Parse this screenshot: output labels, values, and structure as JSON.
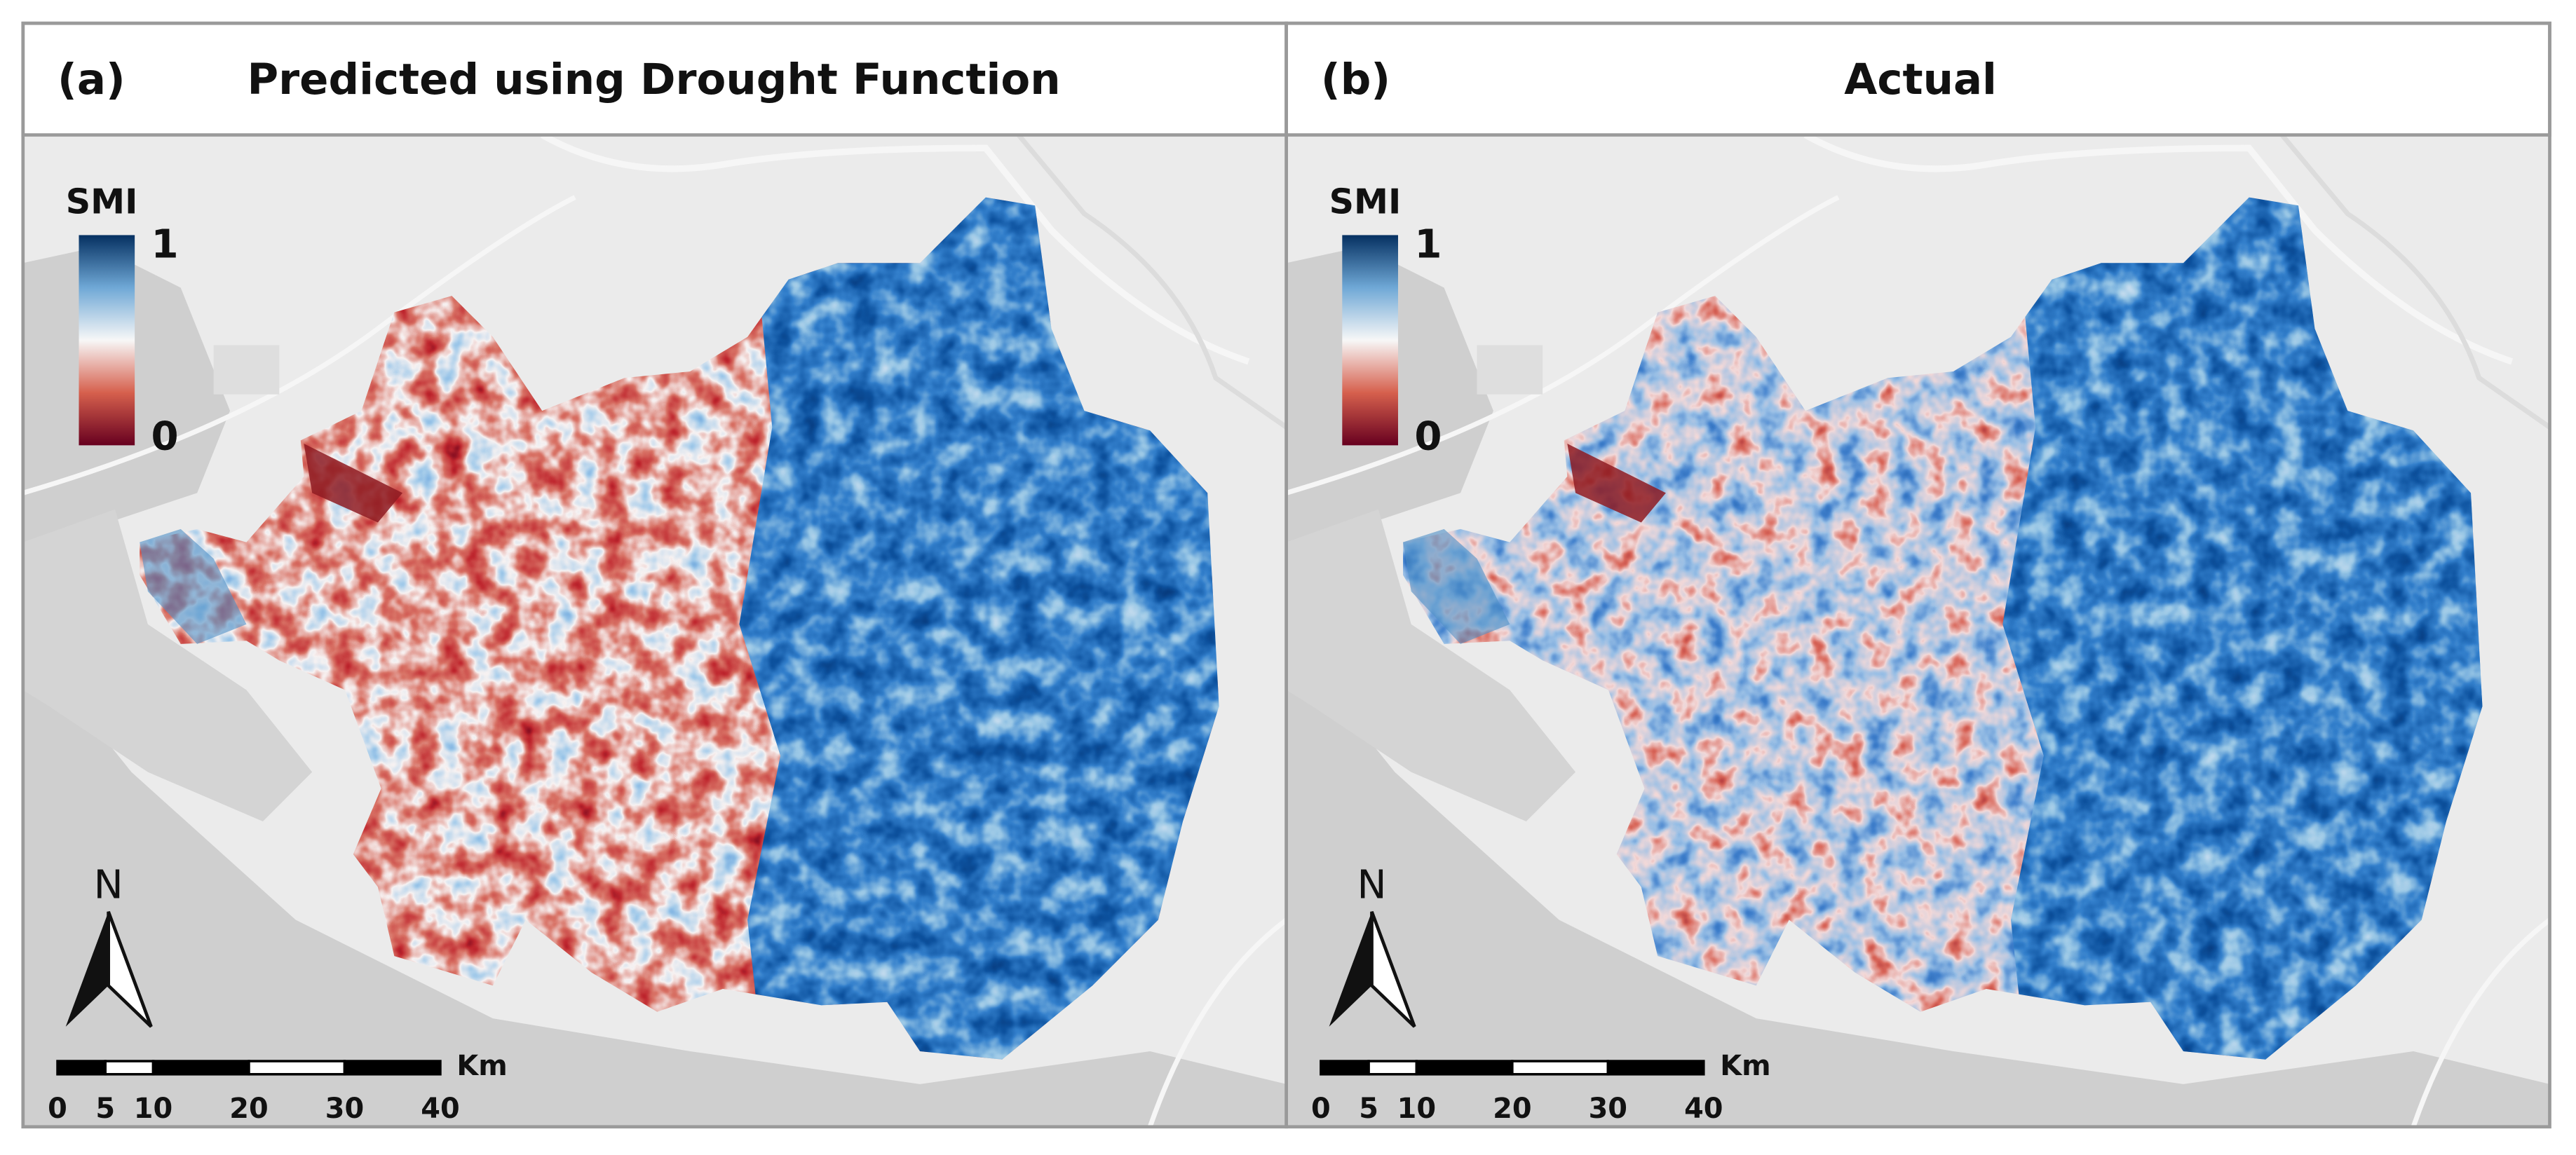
{
  "panels": [
    {
      "label": "(a)",
      "title": "Predicted using Drought Function"
    },
    {
      "label": "(b)",
      "title": "Actual"
    }
  ],
  "legend": {
    "title": "SMI",
    "max": 1,
    "min": 0
  },
  "north": "N",
  "scale_bar": {
    "ticks": [
      0,
      5,
      10,
      20,
      30,
      40
    ],
    "unit": "Km"
  }
}
